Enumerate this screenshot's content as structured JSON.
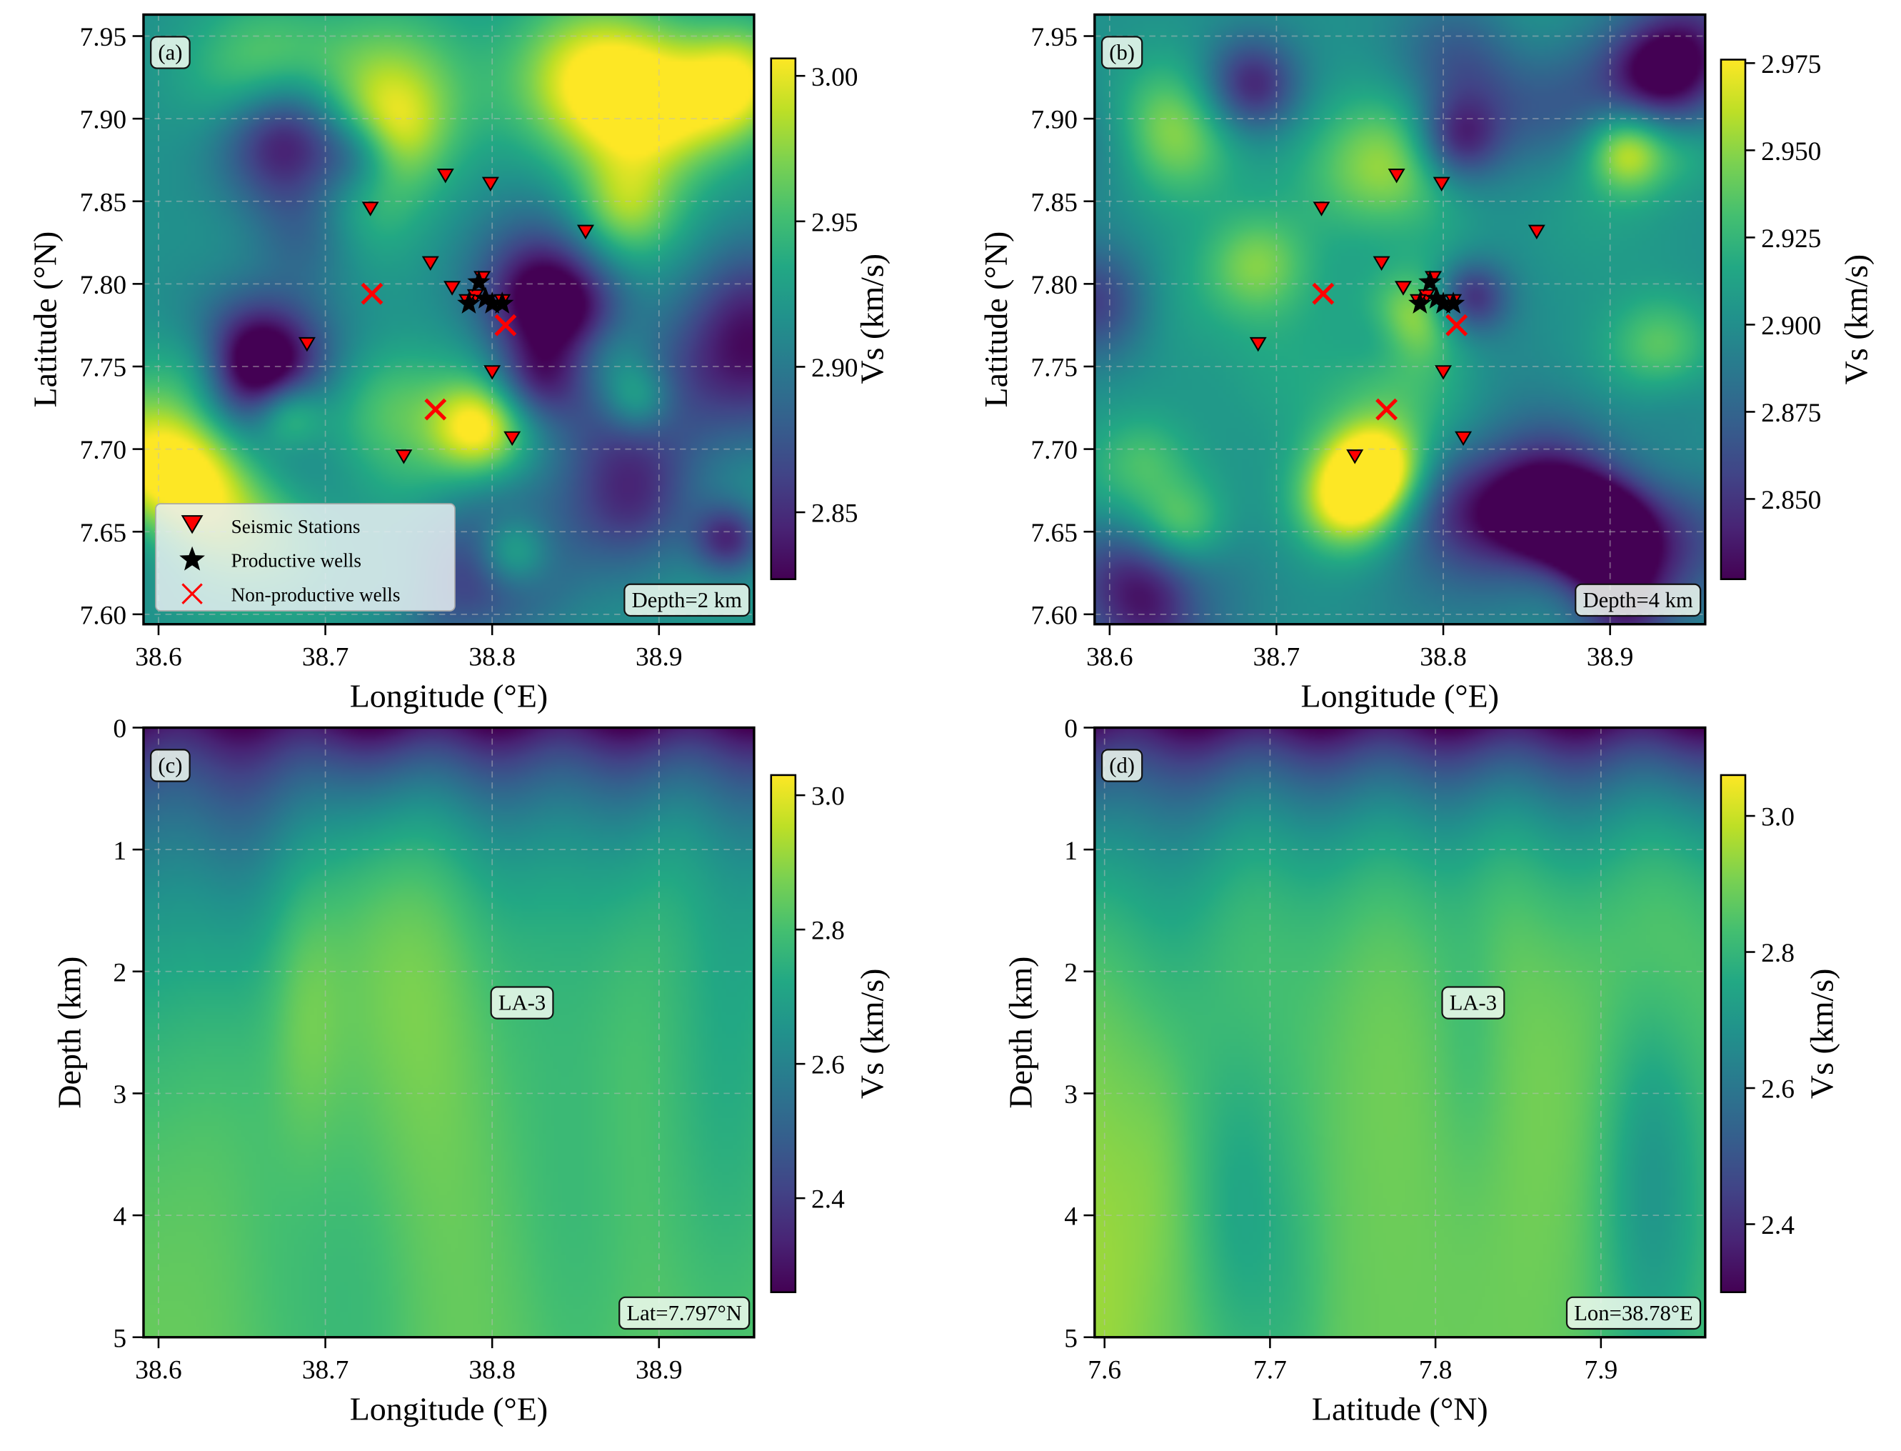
{
  "chart_data": [
    {
      "panel": "(a)",
      "type": "heatmap",
      "colormap": "viridis",
      "xlabel": "Longitude (°E)",
      "ylabel": "Latitude (°N)",
      "xlim": [
        38.591,
        38.957
      ],
      "ylim": [
        7.594,
        7.963
      ],
      "xticks": [
        "38.6",
        "38.7",
        "38.8",
        "38.9"
      ],
      "yticks": [
        "7.60",
        "7.65",
        "7.70",
        "7.75",
        "7.80",
        "7.85",
        "7.90",
        "7.95"
      ],
      "grid": true,
      "colorbar": {
        "label": "Vs (km/s)",
        "range": [
          2.827,
          3.006
        ],
        "ticks": [
          "2.85",
          "2.90",
          "2.95",
          "3.00"
        ]
      },
      "annotation": "Depth=2 km",
      "legend": {
        "placement": "lower-left",
        "entries": [
          "Seismic Stations",
          "Productive wells",
          "Non-productive wells"
        ]
      },
      "markers": true
    },
    {
      "panel": "(b)",
      "type": "heatmap",
      "colormap": "viridis",
      "xlabel": "Longitude (°E)",
      "ylabel": "Latitude (°N)",
      "xlim": [
        38.591,
        38.957
      ],
      "ylim": [
        7.594,
        7.963
      ],
      "xticks": [
        "38.6",
        "38.7",
        "38.8",
        "38.9"
      ],
      "yticks": [
        "7.60",
        "7.65",
        "7.70",
        "7.75",
        "7.80",
        "7.85",
        "7.90",
        "7.95"
      ],
      "grid": true,
      "colorbar": {
        "label": "Vs (km/s)",
        "range": [
          2.827,
          2.976
        ],
        "ticks": [
          "2.850",
          "2.875",
          "2.900",
          "2.925",
          "2.950",
          "2.975"
        ]
      },
      "annotation": "Depth=4 km",
      "markers": true
    },
    {
      "panel": "(c)",
      "type": "heatmap",
      "colormap": "viridis",
      "xlabel": "Longitude (°E)",
      "ylabel": "Depth (km)",
      "xlim": [
        38.591,
        38.957
      ],
      "ylim": [
        5,
        0
      ],
      "y_inverted": true,
      "xticks": [
        "38.6",
        "38.7",
        "38.8",
        "38.9"
      ],
      "yticks": [
        "0",
        "1",
        "2",
        "3",
        "4",
        "5"
      ],
      "grid": true,
      "colorbar": {
        "label": "Vs (km/s)",
        "range": [
          2.26,
          3.03
        ],
        "ticks": [
          "2.4",
          "2.6",
          "2.8",
          "3.0"
        ]
      },
      "annotation": "Lat=7.797°N",
      "well_label": "LA-3"
    },
    {
      "panel": "(d)",
      "type": "heatmap",
      "colormap": "viridis",
      "xlabel": "Latitude (°N)",
      "ylabel": "Depth (km)",
      "xlim": [
        7.594,
        7.963
      ],
      "ylim": [
        5,
        0
      ],
      "y_inverted": true,
      "xticks": [
        "7.6",
        "7.7",
        "7.8",
        "7.9"
      ],
      "yticks": [
        "0",
        "1",
        "2",
        "3",
        "4",
        "5"
      ],
      "grid": true,
      "colorbar": {
        "label": "Vs (km/s)",
        "range": [
          2.3,
          3.06
        ],
        "ticks": [
          "2.4",
          "2.6",
          "2.8",
          "3.0"
        ]
      },
      "annotation": "Lon=38.78°E",
      "well_label": "LA-3"
    }
  ],
  "stations": [
    [
      38.727,
      7.846
    ],
    [
      38.772,
      7.866
    ],
    [
      38.799,
      7.861
    ],
    [
      38.856,
      7.832
    ],
    [
      38.763,
      7.813
    ],
    [
      38.776,
      7.798
    ],
    [
      38.794,
      7.804
    ],
    [
      38.689,
      7.764
    ],
    [
      38.8,
      7.747
    ],
    [
      38.812,
      7.707
    ],
    [
      38.747,
      7.696
    ],
    [
      38.79,
      7.793
    ],
    [
      38.806,
      7.79
    ],
    [
      38.785,
      7.79
    ]
  ],
  "productive_wells": [
    [
      38.792,
      7.801
    ],
    [
      38.786,
      7.788
    ],
    [
      38.796,
      7.791
    ],
    [
      38.8,
      7.788
    ],
    [
      38.806,
      7.788
    ]
  ],
  "nonproductive_wells": [
    [
      38.728,
      7.794
    ],
    [
      38.808,
      7.775
    ],
    [
      38.766,
      7.724
    ]
  ],
  "colors": {
    "station": "#ff0000",
    "productive": "#000000",
    "nonproductive": "#ff0000"
  }
}
